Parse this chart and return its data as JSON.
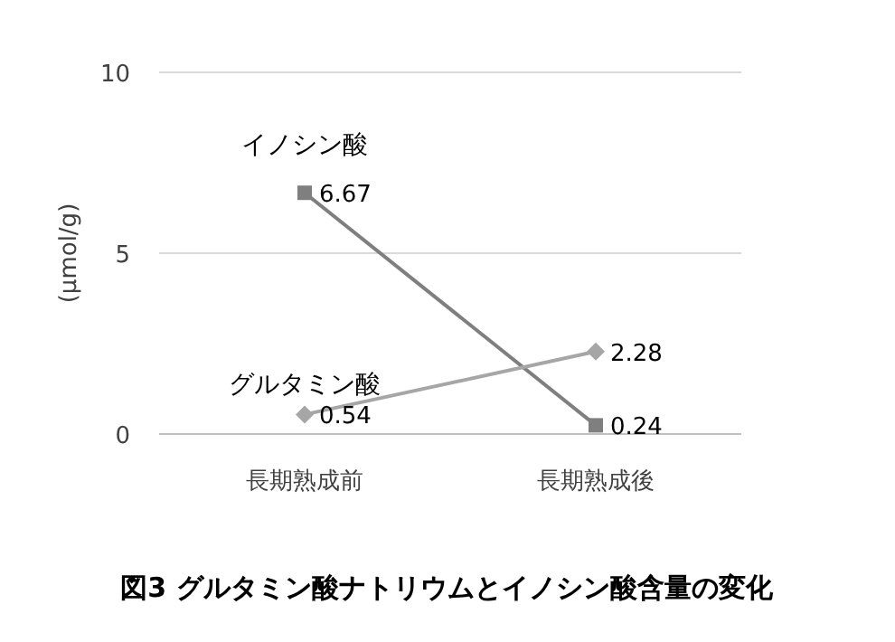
{
  "chart_data": {
    "type": "line",
    "title": "図3 グルタミン酸ナトリウムとイノシン酸含量の変化",
    "ylabel": "(μmol/g)",
    "categories": [
      "長期熟成前",
      "長期熟成後"
    ],
    "series": [
      {
        "name": "イノシン酸",
        "color": "#7f7f7f",
        "marker": "square",
        "values": [
          6.67,
          0.24
        ]
      },
      {
        "name": "グルタミン酸",
        "color": "#a6a6a6",
        "marker": "diamond",
        "values": [
          0.54,
          2.28
        ]
      }
    ],
    "ylim": [
      0,
      10
    ],
    "yticks": [
      0,
      5,
      10
    ],
    "grid": "y",
    "data_labels": true
  }
}
